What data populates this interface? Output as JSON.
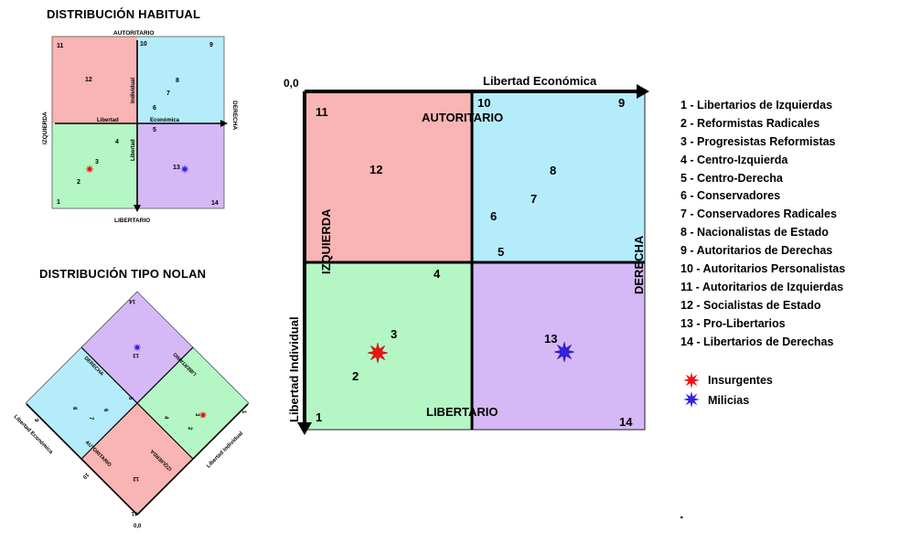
{
  "titles": {
    "habitual": "DISTRIBUCIÓN HABITUAL",
    "nolan": "DISTRIBUCIÓN TIPO NOLAN"
  },
  "main_chart": {
    "origin": "0,0",
    "x_axis_label": "Libertad Económica",
    "y_axis_label": "Libertad Individual",
    "autoritario": "AUTORITARIO",
    "libertario": "LIBERTARIO",
    "izquierda": "IZQUIERDA",
    "derecha": "DERECHA",
    "numbers": [
      "11",
      "10",
      "9",
      "12",
      "8",
      "7",
      "6",
      "5",
      "4",
      "3",
      "2",
      "13",
      "1",
      "14"
    ]
  },
  "habitual_chart": {
    "autoritario": "AUTORITARIO",
    "libertario": "LIBERTARIO",
    "izquierda": "IZQUIERDA",
    "derecha": "DERECHA",
    "individual": "Individual",
    "libertad_a": "Libertad",
    "libertad_b": "Libertad",
    "economica": "Económica",
    "numbers": [
      "11",
      "10",
      "9",
      "12",
      "8",
      "7",
      "6",
      "5",
      "4",
      "3",
      "2",
      "13",
      "1",
      "14"
    ]
  },
  "nolan_chart": {
    "origin": "0,0",
    "x_axis_label": "Libertad Económica",
    "y_axis_label": "Libertad Individual",
    "autoritario": "AUTORITARIO",
    "libertario": "LIBERTARIO",
    "izquierda": "IZQUIERDA",
    "derecha": "DERECHA",
    "numbers": [
      "14",
      "13",
      "9",
      "12",
      "11",
      "10",
      "8",
      "7",
      "6",
      "5",
      "4",
      "3",
      "2",
      "1"
    ]
  },
  "colors": {
    "red_quadrant": "#f9b4b4",
    "blue_quadrant": "#b5ecfb",
    "green_quadrant": "#b4f7c4",
    "purple_quadrant": "#d6b8f7",
    "insurgentes": "#ee1111",
    "milicias": "#3322dd"
  },
  "legend": [
    "1 - Libertarios de Izquierdas",
    "2 - Reformistas Radicales",
    "3 - Progresistas Reformistas",
    "4 - Centro-Izquierda",
    "5 - Centro-Derecha",
    "6 - Conservadores",
    "7 - Conservadores Radicales",
    "8 - Nacionalistas de Estado",
    "9 - Autoritarios de Derechas",
    "10 - Autoritarios Personalistas",
    "11 - Autoritarios de Izquierdas",
    "12 - Socialistas de Estado",
    "13 - Pro-Libertarios",
    "14 - Libertarios de Derechas"
  ],
  "markers": {
    "insurgentes": "Insurgentes",
    "milicias": "Milicias"
  }
}
